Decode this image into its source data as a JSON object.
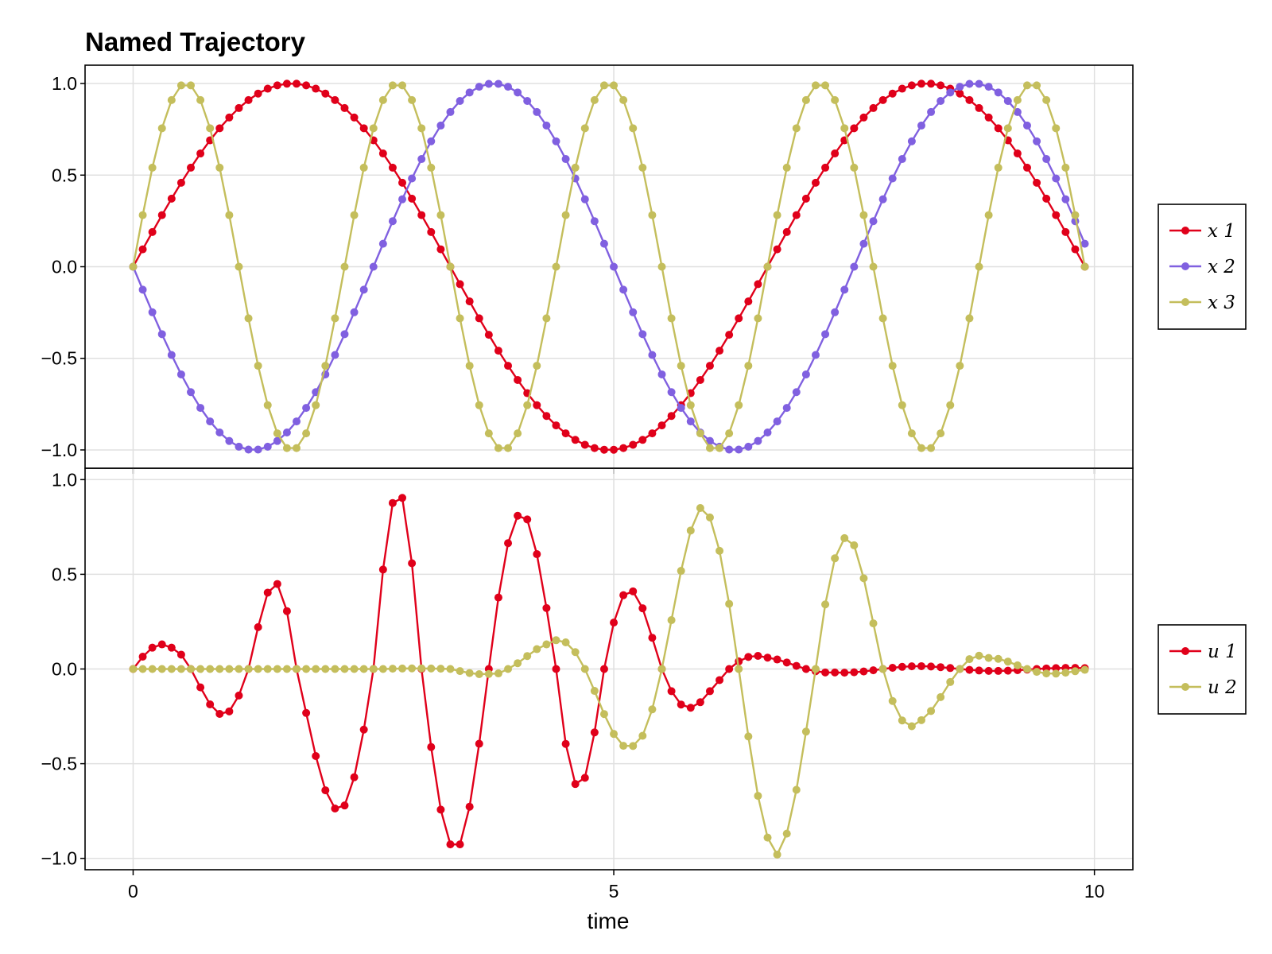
{
  "chart_data": [
    {
      "type": "line",
      "title": "Named Trajectory",
      "xlabel": "",
      "ylabel": "",
      "xlim": [
        -0.5,
        10.4
      ],
      "ylim": [
        -1.1,
        1.1
      ],
      "xticks": [
        "0",
        "5",
        "10"
      ],
      "yticks": [
        "1.0",
        "0.5",
        "0.0",
        "−0.5",
        "−1.0"
      ],
      "grid": true,
      "legend_placement": "right",
      "x_range": [
        0,
        9.9
      ],
      "series": [
        {
          "name": "x 1",
          "color": "#e0001a",
          "formula": "sin(2*pi*t/6.6)",
          "points": 100
        },
        {
          "name": "x 2",
          "color": "#8060e0",
          "formula": "-sin(2*pi*t/5.0)",
          "points": 100
        },
        {
          "name": "x 3",
          "color": "#c4be5c",
          "formula": "sin(2*pi*t/2.2)",
          "points": 100
        }
      ]
    },
    {
      "type": "line",
      "xlabel": "time",
      "ylabel": "",
      "xlim": [
        -0.5,
        10.4
      ],
      "ylim": [
        -1.06,
        1.06
      ],
      "xticks": [
        "0",
        "5",
        "10"
      ],
      "yticks": [
        "1.0",
        "0.5",
        "0.0",
        "−0.5",
        "−1.0"
      ],
      "grid": true,
      "legend_placement": "right",
      "x_range": [
        0,
        9.9
      ],
      "series": [
        {
          "name": "u 1",
          "color": "#e0001a",
          "points": 100,
          "envelope": [
            [
              0,
              0.13
            ],
            [
              0.4,
              0.13
            ],
            [
              1.1,
              0.28
            ],
            [
              1.6,
              0.52
            ],
            [
              2.2,
              0.78
            ],
            [
              2.8,
              0.95
            ],
            [
              3.4,
              0.95
            ],
            [
              4.1,
              0.81
            ],
            [
              4.8,
              0.57
            ],
            [
              5.4,
              0.33
            ],
            [
              6.0,
              0.15
            ],
            [
              6.6,
              0.06
            ],
            [
              7.3,
              0.02
            ],
            [
              9.9,
              0.005
            ]
          ],
          "zeros": [
            0,
            0.6,
            1.2,
            1.7,
            2.5,
            3.0,
            3.7,
            4.4,
            4.9,
            5.5,
            6.2,
            7.0
          ]
        },
        {
          "name": "u 2",
          "color": "#c4be5c",
          "points": 100,
          "envelope": [
            [
              0,
              0
            ],
            [
              2.6,
              0.0
            ],
            [
              3.7,
              0.03
            ],
            [
              4.3,
              0.13
            ],
            [
              5.2,
              0.44
            ],
            [
              5.9,
              0.85
            ],
            [
              6.7,
              0.98
            ],
            [
              7.5,
              0.67
            ],
            [
              8.2,
              0.27
            ],
            [
              8.9,
              0.06
            ],
            [
              9.9,
              0.01
            ]
          ],
          "zeros": [
            0,
            3.3,
            3.9,
            4.7,
            5.5,
            6.3,
            7.1,
            7.8,
            8.6,
            9.3
          ]
        }
      ]
    }
  ]
}
